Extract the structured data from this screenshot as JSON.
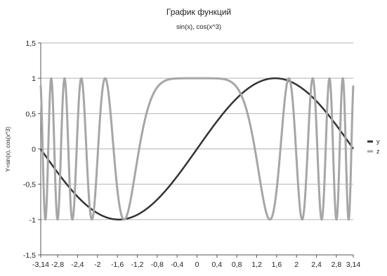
{
  "chart_data": {
    "type": "line",
    "title": "График функций",
    "subtitle": "sin(x), cos(x^3)",
    "xlabel": "",
    "ylabel": "Y=sin(x), cos(x^3)",
    "xlim": [
      -3.14,
      3.14
    ],
    "ylim": [
      -1.5,
      1.5
    ],
    "x_ticks": [
      "-3,14",
      "-2,8",
      "-2,4",
      "-2",
      "-1,6",
      "-1,2",
      "-0,8",
      "-0,4",
      "0",
      "0,4",
      "0,8",
      "1,2",
      "1,6",
      "2",
      "2,4",
      "2,8",
      "3,14"
    ],
    "y_ticks": [
      "1,5",
      "1",
      "0,5",
      "0",
      "-0,5",
      "-1",
      "-1,5"
    ],
    "grid": "horizontal",
    "legend_position": "right",
    "series": [
      {
        "name": "y",
        "function": "sin(x)",
        "color": "#333333"
      },
      {
        "name": "z",
        "function": "cos(x^3)",
        "color": "#a6a6a6"
      }
    ]
  }
}
